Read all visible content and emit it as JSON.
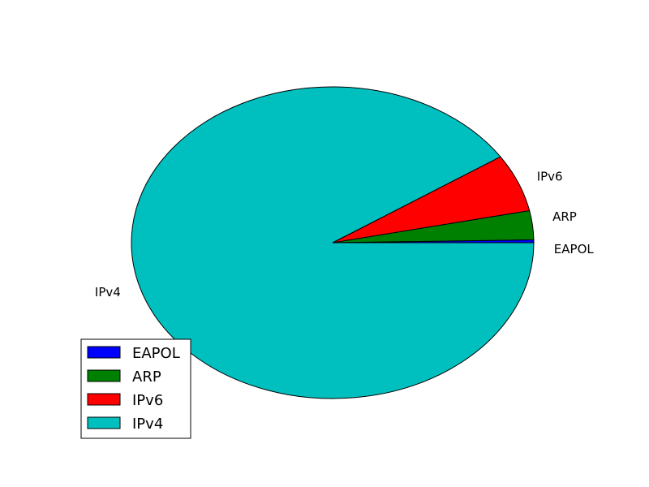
{
  "chart_data": {
    "type": "pie",
    "categories": [
      "EAPOL",
      "ARP",
      "IPv6",
      "IPv4"
    ],
    "values": [
      0.3,
      3.0,
      6.0,
      90.7
    ],
    "colors": [
      "#0000ff",
      "#008000",
      "#ff0000",
      "#00bfbf"
    ],
    "title": "",
    "legend": {
      "placement": "lower-left",
      "entries": [
        "EAPOL",
        "ARP",
        "IPv6",
        "IPv4"
      ]
    },
    "slice_labels": [
      "EAPOL",
      "ARP",
      "IPv6",
      "IPv4"
    ],
    "start_angle_deg": 0,
    "direction": "counterclockwise"
  }
}
